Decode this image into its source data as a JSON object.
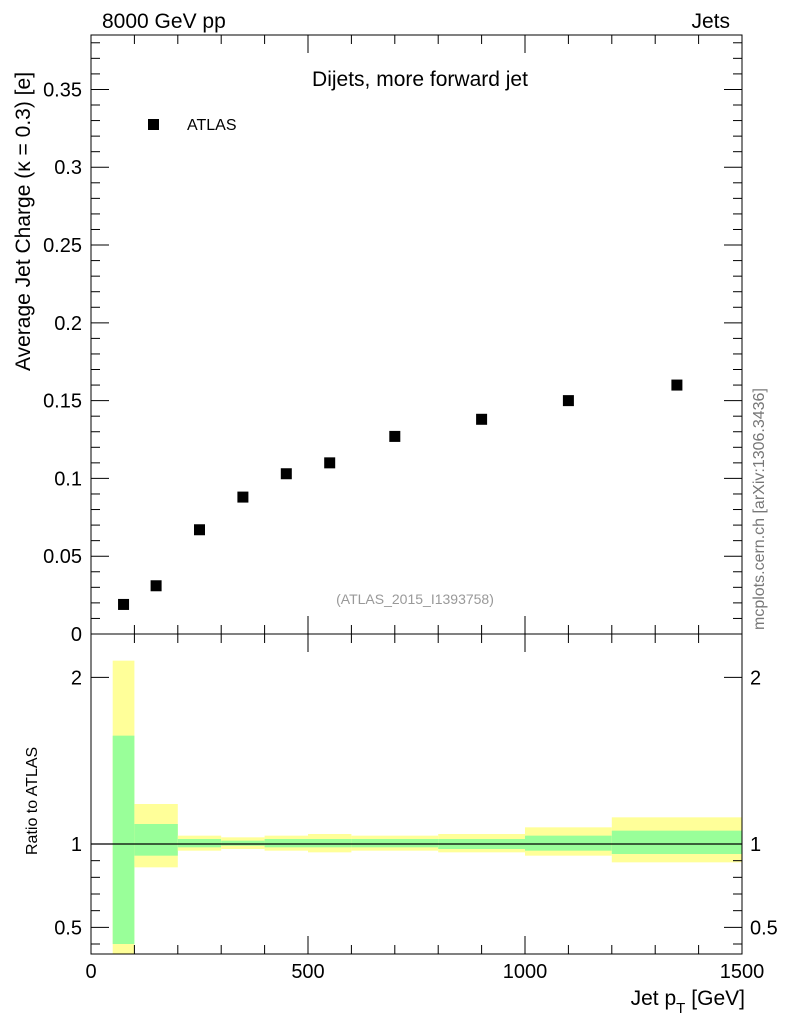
{
  "header": {
    "left": "8000 GeV pp",
    "right": "Jets"
  },
  "side_label": "mcplots.cern.ch [arXiv:1306.3436]",
  "watermark": "(ATLAS_2015_I1393758)",
  "colors": {
    "band_inner": "#99ff99",
    "band_outer": "#ffff99",
    "marker": "#000000",
    "watermark": "#999999",
    "side_label": "#777777"
  },
  "chart_data": [
    {
      "type": "scatter",
      "title": "Dijets, more forward jet",
      "ylabel": "Average Jet Charge (κ = 0.3) [e]",
      "xlim": [
        0,
        1500
      ],
      "ylim": [
        0,
        0.385
      ],
      "yticks": [
        0,
        0.05,
        0.1,
        0.15,
        0.2,
        0.25,
        0.3,
        0.35
      ],
      "ytick_labels": [
        "0",
        "0.05",
        "0.1",
        "0.15",
        "0.2",
        "0.25",
        "0.3",
        "0.35"
      ],
      "legend": {
        "placement": "top-left",
        "entries": [
          "ATLAS"
        ]
      },
      "series": [
        {
          "name": "ATLAS",
          "x": [
            75,
            150,
            250,
            350,
            450,
            550,
            700,
            900,
            1100,
            1350
          ],
          "y": [
            0.019,
            0.031,
            0.067,
            0.088,
            0.103,
            0.11,
            0.127,
            0.138,
            0.15,
            0.16
          ]
        }
      ]
    },
    {
      "type": "area",
      "ylabel": "Ratio to ATLAS",
      "xlabel": "Jet p",
      "xlabel_sub": "T",
      "xlabel_unit": "[GeV]",
      "xlim": [
        0,
        1500
      ],
      "ylim": [
        0.34,
        2.26
      ],
      "xticks": [
        0,
        500,
        1000,
        1500
      ],
      "xtick_labels": [
        "0",
        "500",
        "1000",
        "1500"
      ],
      "yticks": [
        0.5,
        1,
        2
      ],
      "ytick_labels": [
        "0.5",
        "1",
        "2"
      ],
      "reference_line": 1,
      "bins": [
        {
          "x0": 50,
          "x1": 100,
          "inner": [
            0.4,
            1.65
          ],
          "outer": [
            0.34,
            2.1
          ]
        },
        {
          "x0": 100,
          "x1": 200,
          "inner": [
            0.93,
            1.12
          ],
          "outer": [
            0.86,
            1.24
          ]
        },
        {
          "x0": 200,
          "x1": 300,
          "inner": [
            0.98,
            1.03
          ],
          "outer": [
            0.96,
            1.05
          ]
        },
        {
          "x0": 300,
          "x1": 400,
          "inner": [
            0.99,
            1.02
          ],
          "outer": [
            0.97,
            1.04
          ]
        },
        {
          "x0": 400,
          "x1": 500,
          "inner": [
            0.98,
            1.03
          ],
          "outer": [
            0.96,
            1.05
          ]
        },
        {
          "x0": 500,
          "x1": 600,
          "inner": [
            0.98,
            1.03
          ],
          "outer": [
            0.95,
            1.06
          ]
        },
        {
          "x0": 600,
          "x1": 800,
          "inner": [
            0.98,
            1.03
          ],
          "outer": [
            0.96,
            1.05
          ]
        },
        {
          "x0": 800,
          "x1": 1000,
          "inner": [
            0.97,
            1.03
          ],
          "outer": [
            0.95,
            1.06
          ]
        },
        {
          "x0": 1000,
          "x1": 1200,
          "inner": [
            0.96,
            1.05
          ],
          "outer": [
            0.93,
            1.1
          ]
        },
        {
          "x0": 1200,
          "x1": 1500,
          "inner": [
            0.94,
            1.08
          ],
          "outer": [
            0.89,
            1.16
          ]
        }
      ]
    }
  ]
}
